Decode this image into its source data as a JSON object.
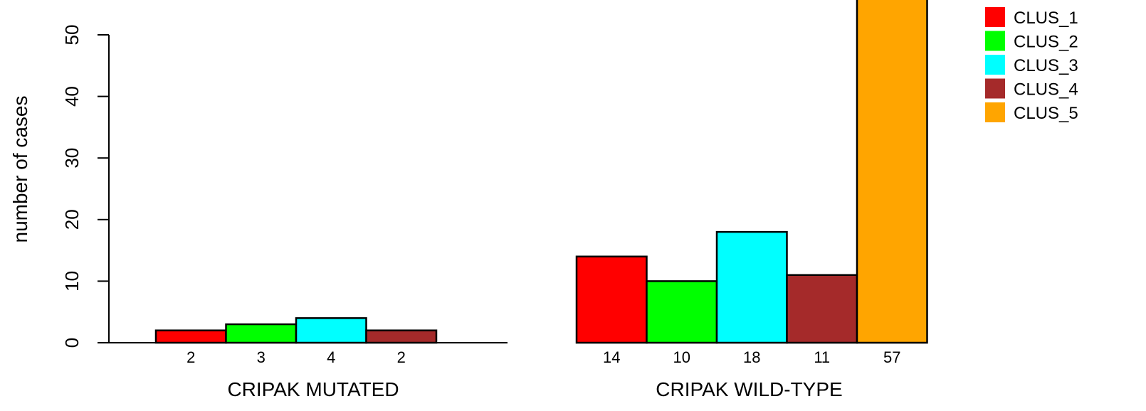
{
  "chart_data": {
    "type": "bar",
    "ylabel": "number of cases",
    "ylim": [
      0,
      57
    ],
    "yticks": [
      "0",
      "10",
      "20",
      "30",
      "40",
      "50"
    ],
    "grid": false,
    "legend_position": "top-right",
    "groups": [
      {
        "label": "CRIPAK MUTATED",
        "values": [
          2,
          3,
          4,
          2,
          0
        ],
        "value_labels": [
          "2",
          "3",
          "4",
          "2",
          ""
        ]
      },
      {
        "label": "CRIPAK WILD-TYPE",
        "values": [
          14,
          10,
          18,
          11,
          57
        ],
        "value_labels": [
          "14",
          "10",
          "18",
          "11",
          "57"
        ]
      }
    ],
    "series": [
      {
        "name": "CLUS_1",
        "color": "#ff0000"
      },
      {
        "name": "CLUS_2",
        "color": "#00ff00"
      },
      {
        "name": "CLUS_3",
        "color": "#00ffff"
      },
      {
        "name": "CLUS_4",
        "color": "#a52a2a"
      },
      {
        "name": "CLUS_5",
        "color": "#ffa500"
      }
    ]
  }
}
